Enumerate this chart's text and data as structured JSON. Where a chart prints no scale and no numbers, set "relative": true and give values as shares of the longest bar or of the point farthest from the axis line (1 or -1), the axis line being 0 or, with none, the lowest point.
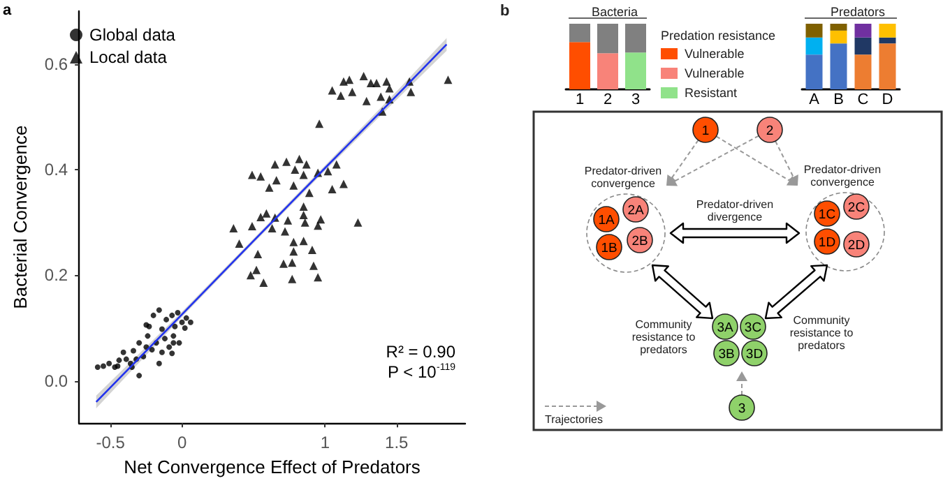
{
  "chart_data": [
    {
      "type": "scatter",
      "xlabel": "Net Convergence Effect of Predators",
      "ylabel": "Bacterial Convergence",
      "annotations": [
        "a",
        "R² = 0.90",
        "P < 10$^{-119}$"
      ],
      "xlim": [
        -0.72,
        1.98
      ],
      "ylim": [
        -0.08,
        0.7
      ],
      "xticks": [
        -0.5,
        0,
        1,
        1.5
      ],
      "yticks": [
        {
          "value": 0,
          "label": "0.0"
        },
        {
          "value": 0.2,
          "label": "0.2"
        },
        {
          "value": 0.4,
          "label": "0.4"
        },
        {
          "value": 0.6,
          "label": "0.6"
        }
      ],
      "grid": false,
      "legend": "top left",
      "series": [
        {
          "name": "Global data",
          "color": "#000000",
          "marker": "circle",
          "x": [
            -0.59,
            -0.55,
            -0.51,
            -0.47,
            -0.44,
            -0.39,
            -0.41,
            -0.36,
            -0.34,
            -0.3,
            -0.3,
            -0.27,
            -0.25,
            -0.24,
            -0.23,
            -0.2,
            -0.18,
            -0.16,
            -0.16,
            -0.14,
            -0.12,
            -0.11,
            -0.09,
            -0.07,
            -0.06,
            -0.05,
            -0.03,
            -0.02,
            0,
            0.02,
            0.03,
            0.06,
            -0.25,
            -0.32,
            -0.21,
            -0.14,
            -0.07,
            -0.35,
            -0.45,
            -0.06
          ],
          "values": [
            0.026,
            0.028,
            0.033,
            0.026,
            0.039,
            0.041,
            0.054,
            0.033,
            0.057,
            0.072,
            0.01,
            0.046,
            0.064,
            0.085,
            0.103,
            0.124,
            0.072,
            0.134,
            0.033,
            0.098,
            0.08,
            0.116,
            0.064,
            0.124,
            0.085,
            0.103,
            0.129,
            0.072,
            0.111,
            0.1,
            0.119,
            0.111,
            0.106,
            0.041,
            0.059,
            0.054,
            0.052,
            0.026,
            0.028,
            0.072
          ]
        },
        {
          "name": "Local data",
          "color": "#000000",
          "marker": "triangle",
          "x": [
            1.05,
            1.13,
            1.17,
            1.27,
            1.32,
            1.36,
            1.43,
            1.45,
            1.59,
            1.6,
            1.86,
            1.19,
            1.11,
            1.29,
            1.39,
            1.45,
            1.4,
            0.96,
            0.49,
            0.55,
            0.65,
            0.73,
            0.82,
            0.87,
            0.79,
            0.85,
            0.66,
            0.61,
            0.78,
            0.95,
            1.02,
            1.08,
            1.05,
            1.13,
            0.89,
            0.85,
            0.85,
            0.59,
            0.55,
            0.65,
            0.74,
            0.86,
            0.97,
            1.23,
            0.36,
            0.49,
            0.63,
            0.72,
            0.95,
            0.4,
            0.53,
            0.78,
            0.85,
            0.78,
            0.91,
            0.71,
            0.77,
            0.92,
            0.48,
            0.57,
            0.77,
            0.95,
            0.52
          ],
          "values": [
            0.55,
            0.567,
            0.57,
            0.577,
            0.564,
            0.564,
            0.567,
            0.554,
            0.567,
            0.547,
            0.57,
            0.547,
            0.54,
            0.53,
            0.538,
            0.533,
            0.51,
            0.487,
            0.39,
            0.387,
            0.41,
            0.415,
            0.42,
            0.41,
            0.4,
            0.39,
            0.38,
            0.366,
            0.37,
            0.394,
            0.397,
            0.41,
            0.363,
            0.373,
            0.356,
            0.33,
            0.314,
            0.317,
            0.31,
            0.309,
            0.304,
            0.3,
            0.306,
            0.3,
            0.289,
            0.293,
            0.289,
            0.283,
            0.294,
            0.26,
            0.24,
            0.263,
            0.265,
            0.245,
            0.248,
            0.222,
            0.224,
            0.218,
            0.2,
            0.186,
            0.193,
            0.196,
            0.21
          ]
        },
        {
          "type": "line",
          "color": "#2233ee",
          "marker": "none",
          "x": [
            -0.6,
            0,
            0.5,
            1,
            1.5,
            1.85
          ],
          "values": [
            -0.04,
            0.126,
            0.265,
            0.403,
            0.54,
            0.637
          ],
          "lower": [
            -0.052,
            0.121,
            0.261,
            0.398,
            0.532,
            0.625
          ],
          "upper": [
            -0.028,
            0.131,
            0.269,
            0.408,
            0.548,
            0.649
          ]
        }
      ]
    },
    {
      "type": "bar",
      "title": "Bacteria",
      "categories": [
        "1",
        "2",
        "3"
      ],
      "stacked": true,
      "relative": true,
      "legend": "right",
      "legend_title": "Predation resistance",
      "series": [
        {
          "name": "Vulnerable",
          "color": "#ff4e00",
          "values": [
            0.72,
            null,
            null
          ]
        },
        {
          "name": "Vulnerable",
          "color": "#f88379",
          "values": [
            null,
            0.55,
            null
          ]
        },
        {
          "name": "Resistant",
          "color": "#90e28a",
          "values": [
            null,
            null,
            0.56
          ]
        },
        {
          "color": "#808080",
          "values": [
            0.28,
            0.45,
            0.44
          ]
        }
      ]
    },
    {
      "type": "bar",
      "title": "Predators",
      "categories": [
        "A",
        "B",
        "C",
        "D"
      ],
      "stacked": true,
      "relative": true,
      "series": [
        {
          "colors": [
            "#4472c4",
            "#4472c4",
            "#ed7d31",
            "#ed7d31"
          ],
          "values": [
            0.53,
            0.7,
            0.53,
            0.7
          ]
        },
        {
          "colors": [
            "#00b0f0",
            "#ffc000",
            "#203864",
            "#203864"
          ],
          "values": [
            0.26,
            0.195,
            0.26,
            0.09
          ]
        },
        {
          "colors": [
            "#7f6000",
            "#7f6000",
            "#7030a0",
            "#ffc000"
          ],
          "values": [
            0.21,
            0.105,
            0.21,
            0.21
          ]
        }
      ]
    },
    {
      "type": "other",
      "annotations": [
        "b",
        "Predator-driven convergence",
        "Predator-driven convergence",
        "Predator-driven divergence",
        "Community resistance to predators",
        "Community resistance to predators",
        "Trajectories"
      ],
      "categories": [
        "1",
        "2",
        "1A",
        "2A",
        "1B",
        "2B",
        "1C",
        "2C",
        "1D",
        "2D",
        "3A",
        "3C",
        "3B",
        "3D",
        "3"
      ],
      "colors": [
        "#ff4e00",
        "#f88379",
        "#ff4e00",
        "#f88379",
        "#ff4e00",
        "#f88379",
        "#ff4e00",
        "#f88379",
        "#ff4e00",
        "#f88379",
        "#8fd16a",
        "#8fd16a",
        "#8fd16a",
        "#8fd16a",
        "#8fd16a"
      ]
    }
  ]
}
